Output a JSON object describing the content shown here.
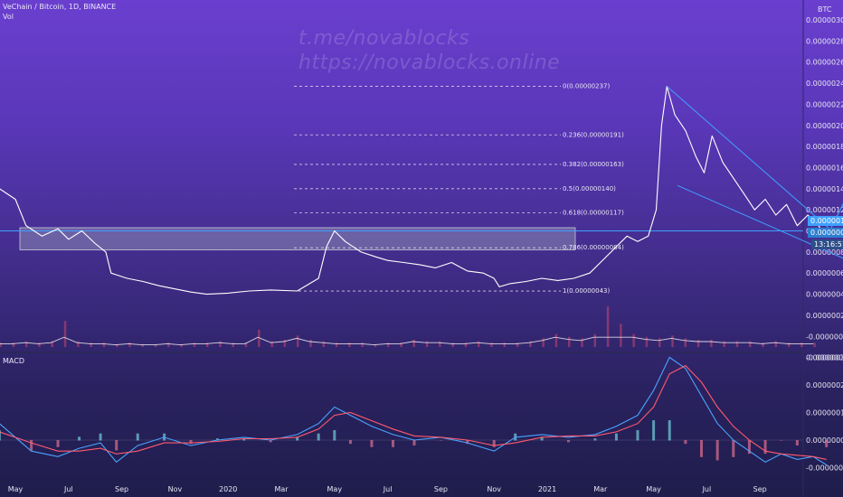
{
  "header": {
    "symbol_line": "VeChain / Bitcoin, 1D, BINANCE",
    "vol_label": "Vol",
    "macd_label": "MACD",
    "currency": "BTC"
  },
  "watermark": {
    "line1": "t.me/novablocks",
    "line2": "https://novablocks.online"
  },
  "colors": {
    "bg_top": "#6a3fcf",
    "bg_bottom": "#1f1d4b",
    "price": "#ffffff",
    "zone": "#9aa4b8",
    "accent": "#3fa0ff",
    "macd_line": "#4aa3ff",
    "signal_line": "#ff5a6e"
  },
  "chart_data": {
    "type": "line",
    "title": "VeChain / Bitcoin, 1D, BINANCE",
    "x_axis_labels": [
      "May",
      "Jul",
      "Sep",
      "Nov",
      "2020",
      "Mar",
      "May",
      "Jul",
      "Sep",
      "Nov",
      "2021",
      "Mar",
      "May",
      "Jul",
      "Sep"
    ],
    "y_axis_labels": [
      "0.00000300",
      "0.00000280",
      "0.00000260",
      "0.00000240",
      "0.00000220",
      "0.00000200",
      "0.00000180",
      "0.00000160",
      "0.00000140",
      "0.00000120",
      "0.00000100",
      "0.00000080",
      "0.00000060",
      "0.00000040",
      "0.00000020",
      "-0.00000000",
      "-0.00000020"
    ],
    "ylim": [
      -2e-07,
      3e-06
    ],
    "macd_y_labels": [
      "0.00000030",
      "0.00000020",
      "0.00000010",
      "0.00000000",
      "-0.00000010"
    ],
    "current_price_label": "0.00000100",
    "close_label": "0.00000094",
    "countdown": "13:16:57",
    "fib_levels": [
      {
        "label": "0(0.00000237)",
        "value": 2.37
      },
      {
        "label": "0.236(0.00000191)",
        "value": 1.91
      },
      {
        "label": "0.382(0.00000163)",
        "value": 1.63
      },
      {
        "label": "0.5(0.00000140)",
        "value": 1.4
      },
      {
        "label": "0.618(0.00000117)",
        "value": 1.17
      },
      {
        "label": "0.786(0.00000084)",
        "value": 0.84
      },
      {
        "label": "1(0.00000043)",
        "value": 0.43
      }
    ],
    "price_series": [
      {
        "m": -0.3,
        "v": 1.4
      },
      {
        "m": 0.0,
        "v": 1.3
      },
      {
        "m": 0.2,
        "v": 1.05
      },
      {
        "m": 0.5,
        "v": 0.95
      },
      {
        "m": 0.8,
        "v": 1.02
      },
      {
        "m": 1.0,
        "v": 0.92
      },
      {
        "m": 1.25,
        "v": 1.0
      },
      {
        "m": 1.5,
        "v": 0.88
      },
      {
        "m": 1.7,
        "v": 0.8
      },
      {
        "m": 1.8,
        "v": 0.6
      },
      {
        "m": 2.1,
        "v": 0.55
      },
      {
        "m": 2.4,
        "v": 0.52
      },
      {
        "m": 2.7,
        "v": 0.48
      },
      {
        "m": 3.0,
        "v": 0.45
      },
      {
        "m": 3.3,
        "v": 0.42
      },
      {
        "m": 3.6,
        "v": 0.4
      },
      {
        "m": 4.0,
        "v": 0.41
      },
      {
        "m": 4.4,
        "v": 0.43
      },
      {
        "m": 4.8,
        "v": 0.44
      },
      {
        "m": 5.3,
        "v": 0.43
      },
      {
        "m": 5.7,
        "v": 0.55
      },
      {
        "m": 5.85,
        "v": 0.85
      },
      {
        "m": 6.0,
        "v": 1.0
      },
      {
        "m": 6.2,
        "v": 0.9
      },
      {
        "m": 6.5,
        "v": 0.8
      },
      {
        "m": 6.8,
        "v": 0.75
      },
      {
        "m": 7.0,
        "v": 0.72
      },
      {
        "m": 7.3,
        "v": 0.7
      },
      {
        "m": 7.6,
        "v": 0.68
      },
      {
        "m": 7.9,
        "v": 0.65
      },
      {
        "m": 8.2,
        "v": 0.7
      },
      {
        "m": 8.5,
        "v": 0.62
      },
      {
        "m": 8.8,
        "v": 0.6
      },
      {
        "m": 9.0,
        "v": 0.55
      },
      {
        "m": 9.1,
        "v": 0.47
      },
      {
        "m": 9.3,
        "v": 0.5
      },
      {
        "m": 9.6,
        "v": 0.52
      },
      {
        "m": 9.9,
        "v": 0.55
      },
      {
        "m": 10.2,
        "v": 0.53
      },
      {
        "m": 10.5,
        "v": 0.55
      },
      {
        "m": 10.8,
        "v": 0.6
      },
      {
        "m": 11.0,
        "v": 0.7
      },
      {
        "m": 11.3,
        "v": 0.85
      },
      {
        "m": 11.5,
        "v": 0.95
      },
      {
        "m": 11.7,
        "v": 0.9
      },
      {
        "m": 11.9,
        "v": 0.95
      },
      {
        "m": 12.05,
        "v": 1.2
      },
      {
        "m": 12.15,
        "v": 2.0
      },
      {
        "m": 12.25,
        "v": 2.37
      },
      {
        "m": 12.4,
        "v": 2.1
      },
      {
        "m": 12.6,
        "v": 1.95
      },
      {
        "m": 12.8,
        "v": 1.7
      },
      {
        "m": 12.95,
        "v": 1.55
      },
      {
        "m": 13.1,
        "v": 1.9
      },
      {
        "m": 13.3,
        "v": 1.65
      },
      {
        "m": 13.5,
        "v": 1.5
      },
      {
        "m": 13.7,
        "v": 1.35
      },
      {
        "m": 13.9,
        "v": 1.2
      },
      {
        "m": 14.1,
        "v": 1.3
      },
      {
        "m": 14.3,
        "v": 1.15
      },
      {
        "m": 14.5,
        "v": 1.25
      },
      {
        "m": 14.7,
        "v": 1.05
      },
      {
        "m": 14.9,
        "v": 1.15
      },
      {
        "m": 15.1,
        "v": 1.05
      },
      {
        "m": 15.25,
        "v": 0.94
      }
    ],
    "zone": {
      "top": 1.03,
      "bottom": 0.82
    },
    "horizontal_line": 1.0,
    "volume": [
      3,
      3,
      4,
      3,
      4,
      18,
      4,
      3,
      3,
      2,
      3,
      2,
      2,
      3,
      2,
      3,
      3,
      4,
      3,
      3,
      12,
      4,
      5,
      8,
      5,
      4,
      3,
      3,
      3,
      2,
      3,
      3,
      5,
      4,
      4,
      3,
      3,
      4,
      3,
      3,
      3,
      4,
      6,
      9,
      7,
      6,
      9,
      28,
      16,
      9,
      7,
      6,
      8,
      6,
      5,
      5,
      4,
      4,
      4,
      3,
      4,
      3,
      3,
      3
    ],
    "macd_series": [
      {
        "m": -0.3,
        "v": 0.6
      },
      {
        "m": 0.3,
        "v": -0.4
      },
      {
        "m": 0.8,
        "v": -0.6
      },
      {
        "m": 1.2,
        "v": -0.3
      },
      {
        "m": 1.6,
        "v": -0.1
      },
      {
        "m": 1.9,
        "v": -0.8
      },
      {
        "m": 2.3,
        "v": -0.2
      },
      {
        "m": 2.8,
        "v": 0.1
      },
      {
        "m": 3.3,
        "v": -0.2
      },
      {
        "m": 3.8,
        "v": 0.0
      },
      {
        "m": 4.3,
        "v": 0.1
      },
      {
        "m": 4.8,
        "v": 0.0
      },
      {
        "m": 5.3,
        "v": 0.2
      },
      {
        "m": 5.7,
        "v": 0.6
      },
      {
        "m": 6.0,
        "v": 1.2
      },
      {
        "m": 6.3,
        "v": 0.9
      },
      {
        "m": 6.7,
        "v": 0.5
      },
      {
        "m": 7.1,
        "v": 0.2
      },
      {
        "m": 7.5,
        "v": 0.0
      },
      {
        "m": 8.0,
        "v": 0.1
      },
      {
        "m": 8.5,
        "v": -0.1
      },
      {
        "m": 9.0,
        "v": -0.4
      },
      {
        "m": 9.4,
        "v": 0.1
      },
      {
        "m": 9.9,
        "v": 0.2
      },
      {
        "m": 10.4,
        "v": 0.1
      },
      {
        "m": 10.9,
        "v": 0.2
      },
      {
        "m": 11.3,
        "v": 0.5
      },
      {
        "m": 11.7,
        "v": 0.9
      },
      {
        "m": 12.0,
        "v": 1.8
      },
      {
        "m": 12.3,
        "v": 3.0
      },
      {
        "m": 12.6,
        "v": 2.6
      },
      {
        "m": 12.9,
        "v": 1.6
      },
      {
        "m": 13.2,
        "v": 0.6
      },
      {
        "m": 13.5,
        "v": 0.0
      },
      {
        "m": 13.8,
        "v": -0.4
      },
      {
        "m": 14.1,
        "v": -0.8
      },
      {
        "m": 14.4,
        "v": -0.5
      },
      {
        "m": 14.7,
        "v": -0.7
      },
      {
        "m": 15.0,
        "v": -0.6
      },
      {
        "m": 15.25,
        "v": -0.9
      }
    ],
    "signal_series": [
      {
        "m": -0.3,
        "v": 0.3
      },
      {
        "m": 0.3,
        "v": -0.1
      },
      {
        "m": 0.8,
        "v": -0.4
      },
      {
        "m": 1.2,
        "v": -0.4
      },
      {
        "m": 1.6,
        "v": -0.3
      },
      {
        "m": 1.9,
        "v": -0.5
      },
      {
        "m": 2.3,
        "v": -0.4
      },
      {
        "m": 2.8,
        "v": -0.1
      },
      {
        "m": 3.3,
        "v": -0.1
      },
      {
        "m": 3.8,
        "v": -0.05
      },
      {
        "m": 4.3,
        "v": 0.05
      },
      {
        "m": 4.8,
        "v": 0.05
      },
      {
        "m": 5.3,
        "v": 0.1
      },
      {
        "m": 5.7,
        "v": 0.4
      },
      {
        "m": 6.0,
        "v": 0.9
      },
      {
        "m": 6.3,
        "v": 1.0
      },
      {
        "m": 6.7,
        "v": 0.7
      },
      {
        "m": 7.1,
        "v": 0.4
      },
      {
        "m": 7.5,
        "v": 0.15
      },
      {
        "m": 8.0,
        "v": 0.1
      },
      {
        "m": 8.5,
        "v": 0.0
      },
      {
        "m": 9.0,
        "v": -0.2
      },
      {
        "m": 9.4,
        "v": -0.1
      },
      {
        "m": 9.9,
        "v": 0.1
      },
      {
        "m": 10.4,
        "v": 0.15
      },
      {
        "m": 10.9,
        "v": 0.15
      },
      {
        "m": 11.3,
        "v": 0.3
      },
      {
        "m": 11.7,
        "v": 0.6
      },
      {
        "m": 12.0,
        "v": 1.2
      },
      {
        "m": 12.3,
        "v": 2.4
      },
      {
        "m": 12.6,
        "v": 2.7
      },
      {
        "m": 12.9,
        "v": 2.1
      },
      {
        "m": 13.2,
        "v": 1.2
      },
      {
        "m": 13.5,
        "v": 0.5
      },
      {
        "m": 13.8,
        "v": 0.0
      },
      {
        "m": 14.1,
        "v": -0.4
      },
      {
        "m": 14.4,
        "v": -0.5
      },
      {
        "m": 14.7,
        "v": -0.55
      },
      {
        "m": 15.0,
        "v": -0.6
      },
      {
        "m": 15.25,
        "v": -0.7
      }
    ]
  }
}
